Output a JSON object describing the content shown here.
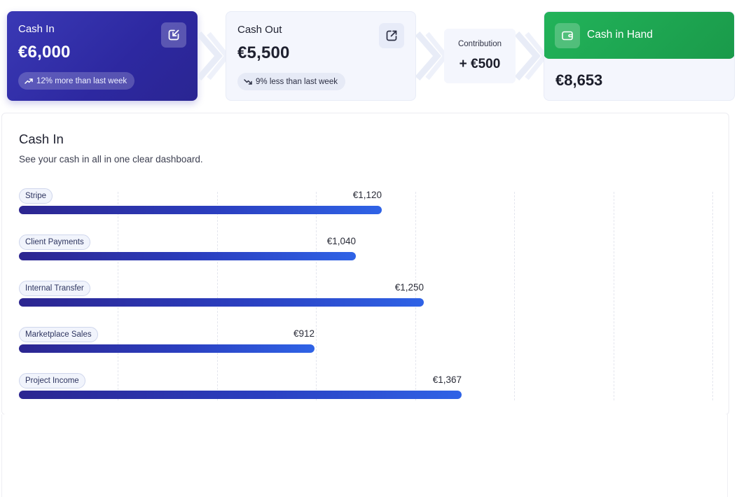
{
  "cash_in": {
    "title": "Cash In",
    "amount": "€6,000",
    "trend": "12% more than last week",
    "action_icon": "arrow-down-left-square-icon"
  },
  "cash_out": {
    "title": "Cash Out",
    "amount": "€5,500",
    "trend": "9% less than last week",
    "action_icon": "arrow-up-right-square-icon"
  },
  "contribution": {
    "label": "Contribution",
    "value": "+ €500"
  },
  "cash_in_hand": {
    "title": "Cash in Hand",
    "amount": "€8,653",
    "icon": "wallet-icon"
  },
  "panel": {
    "title": "Cash In",
    "subtitle": "See your cash in all in one clear dashboard."
  },
  "colors": {
    "primary": "#3a39b5",
    "success": "#22b35a",
    "bar_start": "#2c2590",
    "bar_end": "#2f63e6"
  },
  "chart_data": {
    "type": "bar",
    "orientation": "horizontal",
    "categories": [
      "Stripe",
      "Client Payments",
      "Internal Transfer",
      "Marketplace Sales",
      "Project Income"
    ],
    "values": [
      1120,
      1040,
      1250,
      912,
      1367
    ],
    "value_labels": [
      "€1,120",
      "€1,040",
      "€1,250",
      "€912",
      "€1,367"
    ],
    "grid": true
  }
}
